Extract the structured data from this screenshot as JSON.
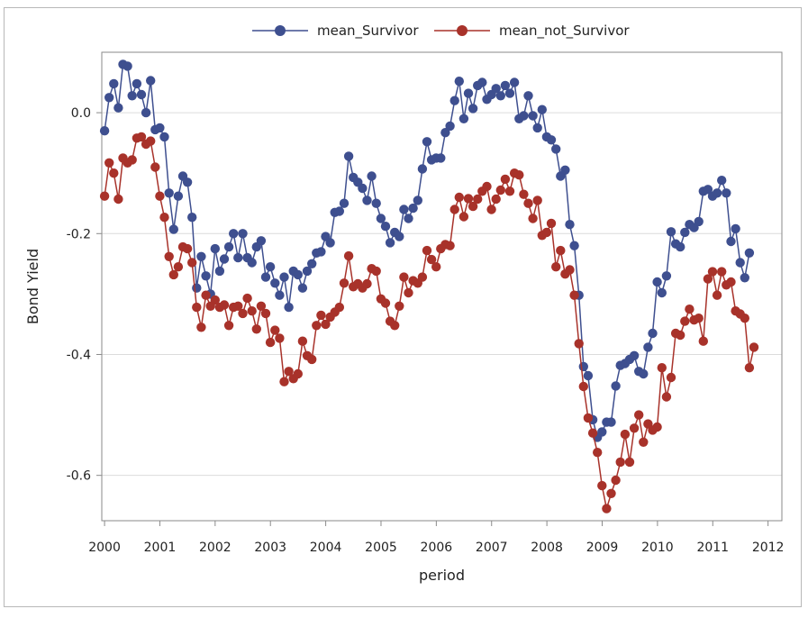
{
  "chart_data": {
    "type": "line",
    "title": "",
    "xlabel": "period",
    "ylabel": "Bond Yield",
    "xlim": [
      1999.95,
      2012.25
    ],
    "ylim": [
      -0.675,
      0.1
    ],
    "xticks": [
      2000,
      2001,
      2002,
      2003,
      2004,
      2005,
      2006,
      2007,
      2008,
      2009,
      2010,
      2011,
      2012
    ],
    "yticks": [
      0.0,
      -0.2,
      -0.4,
      -0.6
    ],
    "ytick_labels": [
      "0.0",
      "-0.2",
      "-0.4",
      "-0.6"
    ],
    "grid": "horizontal",
    "legend_position": "top-center",
    "x_start": 2000.0,
    "x_step": 0.0833,
    "series": [
      {
        "name": "mean_Survivor",
        "color": "#3e4f8f",
        "values": [
          -0.03,
          0.025,
          0.048,
          0.008,
          0.08,
          0.077,
          0.028,
          0.048,
          0.03,
          0.0,
          0.053,
          -0.028,
          -0.025,
          -0.04,
          -0.133,
          -0.193,
          -0.138,
          -0.105,
          -0.115,
          -0.173,
          -0.29,
          -0.238,
          -0.27,
          -0.3,
          -0.225,
          -0.262,
          -0.242,
          -0.222,
          -0.2,
          -0.24,
          -0.2,
          -0.24,
          -0.248,
          -0.222,
          -0.212,
          -0.272,
          -0.255,
          -0.282,
          -0.302,
          -0.272,
          -0.322,
          -0.262,
          -0.268,
          -0.29,
          -0.262,
          -0.25,
          -0.232,
          -0.23,
          -0.205,
          -0.215,
          -0.165,
          -0.163,
          -0.15,
          -0.072,
          -0.107,
          -0.115,
          -0.125,
          -0.145,
          -0.105,
          -0.15,
          -0.175,
          -0.188,
          -0.215,
          -0.198,
          -0.205,
          -0.16,
          -0.175,
          -0.158,
          -0.145,
          -0.093,
          -0.048,
          -0.078,
          -0.075,
          -0.075,
          -0.033,
          -0.022,
          0.02,
          0.052,
          -0.01,
          0.032,
          0.007,
          0.045,
          0.05,
          0.022,
          0.03,
          0.04,
          0.028,
          0.045,
          0.032,
          0.05,
          -0.01,
          -0.005,
          0.028,
          -0.005,
          -0.025,
          0.005,
          -0.04,
          -0.045,
          -0.06,
          -0.105,
          -0.095,
          -0.185,
          -0.22,
          -0.302,
          -0.42,
          -0.435,
          -0.508,
          -0.537,
          -0.528,
          -0.512,
          -0.512,
          -0.452,
          -0.418,
          -0.415,
          -0.408,
          -0.402,
          -0.428,
          -0.432,
          -0.388,
          -0.365,
          -0.28,
          -0.298,
          -0.27,
          -0.197,
          -0.217,
          -0.222,
          -0.198,
          -0.185,
          -0.19,
          -0.18,
          -0.13,
          -0.127,
          -0.138,
          -0.133,
          -0.112,
          -0.133,
          -0.213,
          -0.192,
          -0.248,
          -0.273,
          -0.232
        ]
      },
      {
        "name": "mean_not_Survivor",
        "color": "#a8322a",
        "values": [
          -0.138,
          -0.083,
          -0.1,
          -0.143,
          -0.075,
          -0.083,
          -0.078,
          -0.042,
          -0.04,
          -0.052,
          -0.047,
          -0.09,
          -0.138,
          -0.173,
          -0.238,
          -0.268,
          -0.255,
          -0.222,
          -0.225,
          -0.248,
          -0.322,
          -0.355,
          -0.302,
          -0.32,
          -0.31,
          -0.322,
          -0.318,
          -0.352,
          -0.322,
          -0.32,
          -0.332,
          -0.307,
          -0.328,
          -0.358,
          -0.32,
          -0.332,
          -0.38,
          -0.36,
          -0.373,
          -0.445,
          -0.428,
          -0.44,
          -0.432,
          -0.378,
          -0.402,
          -0.408,
          -0.352,
          -0.335,
          -0.35,
          -0.338,
          -0.33,
          -0.322,
          -0.282,
          -0.237,
          -0.288,
          -0.283,
          -0.29,
          -0.283,
          -0.258,
          -0.262,
          -0.308,
          -0.315,
          -0.345,
          -0.352,
          -0.32,
          -0.272,
          -0.298,
          -0.278,
          -0.282,
          -0.272,
          -0.228,
          -0.243,
          -0.255,
          -0.225,
          -0.218,
          -0.22,
          -0.16,
          -0.14,
          -0.172,
          -0.142,
          -0.155,
          -0.143,
          -0.13,
          -0.122,
          -0.16,
          -0.143,
          -0.128,
          -0.11,
          -0.13,
          -0.1,
          -0.103,
          -0.135,
          -0.15,
          -0.175,
          -0.145,
          -0.203,
          -0.198,
          -0.183,
          -0.255,
          -0.228,
          -0.267,
          -0.26,
          -0.302,
          -0.382,
          -0.453,
          -0.505,
          -0.53,
          -0.562,
          -0.617,
          -0.655,
          -0.63,
          -0.608,
          -0.578,
          -0.532,
          -0.578,
          -0.522,
          -0.5,
          -0.545,
          -0.515,
          -0.525,
          -0.52,
          -0.422,
          -0.47,
          -0.438,
          -0.365,
          -0.368,
          -0.345,
          -0.325,
          -0.343,
          -0.34,
          -0.378,
          -0.275,
          -0.263,
          -0.302,
          -0.263,
          -0.285,
          -0.28,
          -0.328,
          -0.333,
          -0.34,
          -0.422,
          -0.388
        ]
      }
    ]
  }
}
